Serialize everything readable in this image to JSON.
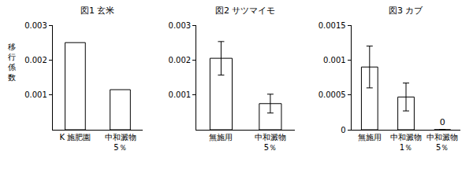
{
  "chart_data": [
    {
      "type": "bar",
      "title": "図1 玄米",
      "ylabel": "移行係数",
      "categories": [
        "K 施肥園",
        "中和澱物\n5％"
      ],
      "values": [
        0.0025,
        0.00115
      ],
      "color": "#ffffff",
      "ylim": [
        0,
        0.003
      ],
      "yticks": [
        0.001,
        0.002,
        0.003
      ]
    },
    {
      "type": "bar",
      "title": "図2 サツマイモ",
      "categories": [
        "無施用",
        "中和澱物\n5％"
      ],
      "values": [
        0.00205,
        0.00075
      ],
      "errors": [
        0.00048,
        0.00027
      ],
      "color": "#ffffff",
      "ylim": [
        0,
        0.003
      ],
      "yticks": [
        0.001,
        0.002,
        0.003
      ]
    },
    {
      "type": "bar",
      "title": "図3 カブ",
      "categories": [
        "無施用",
        "中和澱物\n1％",
        "中和澱物\n5％"
      ],
      "values": [
        0.0009,
        0.00047,
        0
      ],
      "errors": [
        0.0003,
        0.0002,
        0
      ],
      "value_labels": [
        null,
        null,
        "0"
      ],
      "color": "#ffffff",
      "ylim": [
        0,
        0.0015
      ],
      "yticks": [
        0,
        0.0005,
        0.001,
        0.0015
      ]
    }
  ]
}
